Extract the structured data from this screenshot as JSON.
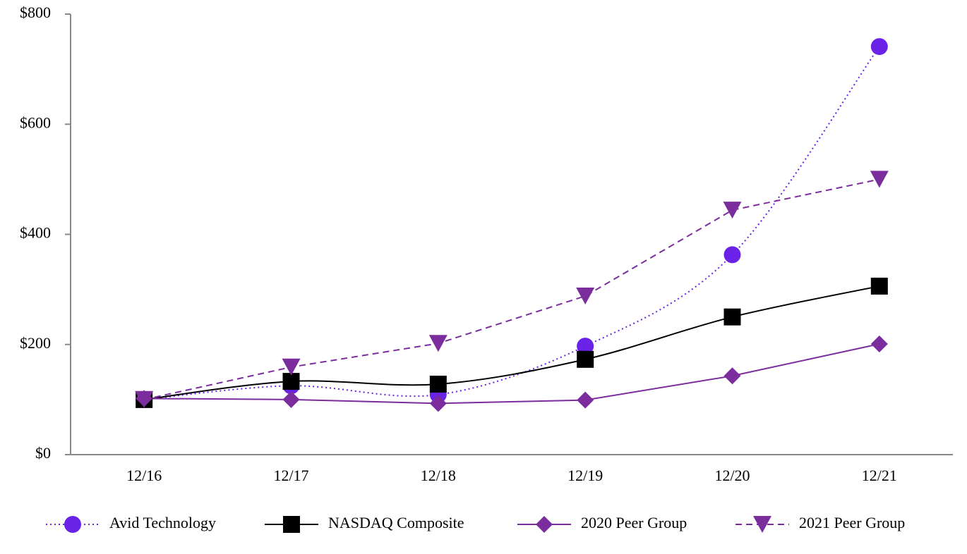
{
  "chart_data": {
    "type": "line",
    "categories": [
      "12/16",
      "12/17",
      "12/18",
      "12/19",
      "12/20",
      "12/21"
    ],
    "ylim": [
      0,
      800
    ],
    "yticks": [
      {
        "value": 0,
        "label": "$0"
      },
      {
        "value": 200,
        "label": "$200"
      },
      {
        "value": 400,
        "label": "$400"
      },
      {
        "value": 600,
        "label": "$600"
      },
      {
        "value": 800,
        "label": "$800"
      }
    ],
    "grid": false,
    "legend": "bottom",
    "series": [
      {
        "name": "Avid Technology",
        "color": "#6a22e6",
        "marker": "circle",
        "line_style": "dotted",
        "smooth": true,
        "values": [
          100,
          125,
          109,
          197,
          363,
          741
        ]
      },
      {
        "name": "NASDAQ Composite",
        "color": "#000000",
        "marker": "square",
        "line_style": "solid",
        "smooth": true,
        "values": [
          100,
          133,
          128,
          173,
          250,
          306
        ]
      },
      {
        "name": "2020 Peer Group",
        "color": "#7b2d9e",
        "marker": "diamond",
        "line_style": "solid",
        "smooth": false,
        "values": [
          102,
          100,
          93,
          99,
          143,
          201
        ]
      },
      {
        "name": "2021 Peer Group",
        "color": "#7b2d9e",
        "marker": "triangle-down",
        "line_style": "dashed",
        "smooth": false,
        "values": [
          100,
          159,
          202,
          288,
          444,
          500
        ]
      }
    ]
  }
}
